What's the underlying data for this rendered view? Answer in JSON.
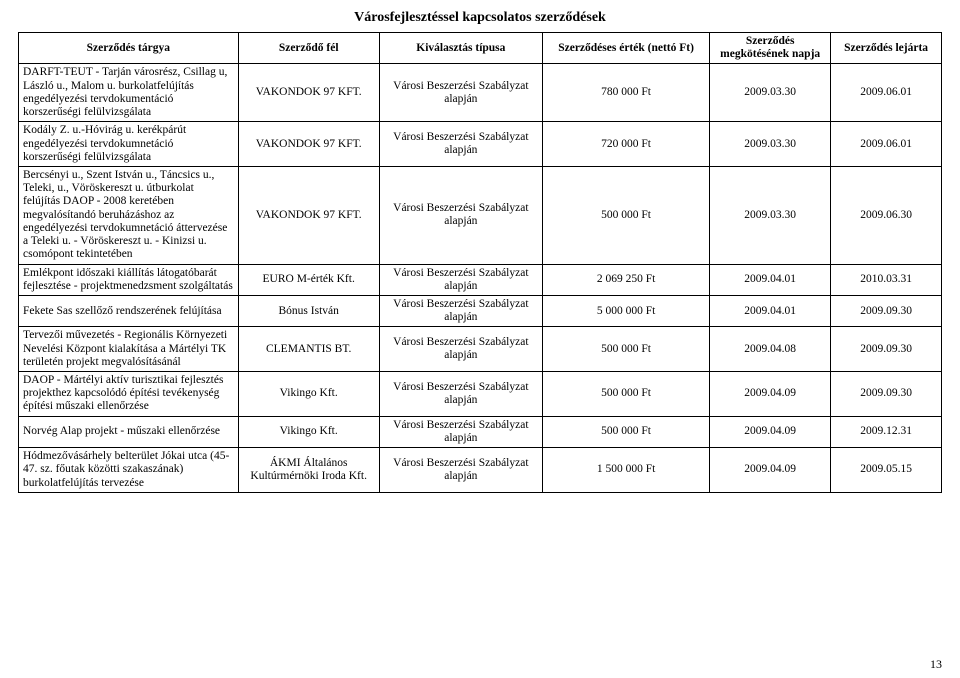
{
  "title": "Városfejlesztéssel kapcsolatos szerződések",
  "page_number": "13",
  "columns": [
    "Szerződés tárgya",
    "Szerződő fél",
    "Kiválasztás típusa",
    "Szerződéses érték (nettó Ft)",
    "Szerződés megkötésének napja",
    "Szerződés lejárta"
  ],
  "rows": [
    {
      "subject": "DARFT-TEUT - Tarján városrész, Csillag u, László u., Malom u. burkolatfelújítás engedélyezési tervdokumentáció korszerűségi felülvizsgálata",
      "party": "VAKONDOK 97 KFT.",
      "type": "Városi Beszerzési Szabályzat alapján",
      "value": "780 000 Ft",
      "date1": "2009.03.30",
      "date2": "2009.06.01"
    },
    {
      "subject": "Kodály Z. u.-Hóvirág u. kerékpárút engedélyezési tervdokumnetáció korszerűségi felülvizsgálata",
      "party": "VAKONDOK 97 KFT.",
      "type": "Városi Beszerzési Szabályzat alapján",
      "value": "720 000 Ft",
      "date1": "2009.03.30",
      "date2": "2009.06.01"
    },
    {
      "subject": "Bercsényi u., Szent István u., Táncsics u., Teleki, u., Vöröskereszt u. útburkolat felújítás DAOP - 2008 keretében megvalósítandó beruházáshoz az engedélyezési tervdokumnetáció áttervezése a Teleki u. - Vöröskereszt u. - Kinizsi u. csomópont tekintetében",
      "party": "VAKONDOK 97 KFT.",
      "type": "Városi Beszerzési Szabályzat alapján",
      "value": "500 000 Ft",
      "date1": "2009.03.30",
      "date2": "2009.06.30"
    },
    {
      "subject": "Emlékpont időszaki kiállítás látogatóbarát fejlesztése - projektmenedzsment szolgáltatás",
      "party": "EURO M-érték Kft.",
      "type": "Városi Beszerzési Szabályzat alapján",
      "value": "2 069 250 Ft",
      "date1": "2009.04.01",
      "date2": "2010.03.31"
    },
    {
      "subject": "Fekete Sas szellőző rendszerének felújítása",
      "party": "Bónus István",
      "type": "Városi Beszerzési Szabályzat alapján",
      "value": "5 000 000 Ft",
      "date1": "2009.04.01",
      "date2": "2009.09.30"
    },
    {
      "subject": "Tervezői művezetés - Regionális Környezeti Nevelési Központ kialakítása a Mártélyi TK területén projekt megvalósításánál",
      "party": "CLEMANTIS BT.",
      "type": "Városi Beszerzési Szabályzat alapján",
      "value": "500 000 Ft",
      "date1": "2009.04.08",
      "date2": "2009.09.30"
    },
    {
      "subject": "DAOP - Mártélyi aktív turisztikai fejlesztés projekthez kapcsolódó építési tevékenység építési műszaki ellenőrzése",
      "party": "Vikingo Kft.",
      "type": "Városi Beszerzési Szabályzat alapján",
      "value": "500 000 Ft",
      "date1": "2009.04.09",
      "date2": "2009.09.30"
    },
    {
      "subject": "Norvég Alap projekt - műszaki ellenőrzése",
      "party": "Vikingo Kft.",
      "type": "Városi Beszerzési Szabályzat alapján",
      "value": "500 000 Ft",
      "date1": "2009.04.09",
      "date2": "2009.12.31"
    },
    {
      "subject": "Hódmezővásárhely belterület Jókai utca (45-47. sz. főutak közötti szakaszának) burkolatfelújítás tervezése",
      "party": "ÁKMI Általános Kultúrmérnöki Iroda Kft.",
      "type": "Városi Beszerzési Szabályzat alapján",
      "value": "1 500 000 Ft",
      "date1": "2009.04.09",
      "date2": "2009.05.15"
    }
  ]
}
